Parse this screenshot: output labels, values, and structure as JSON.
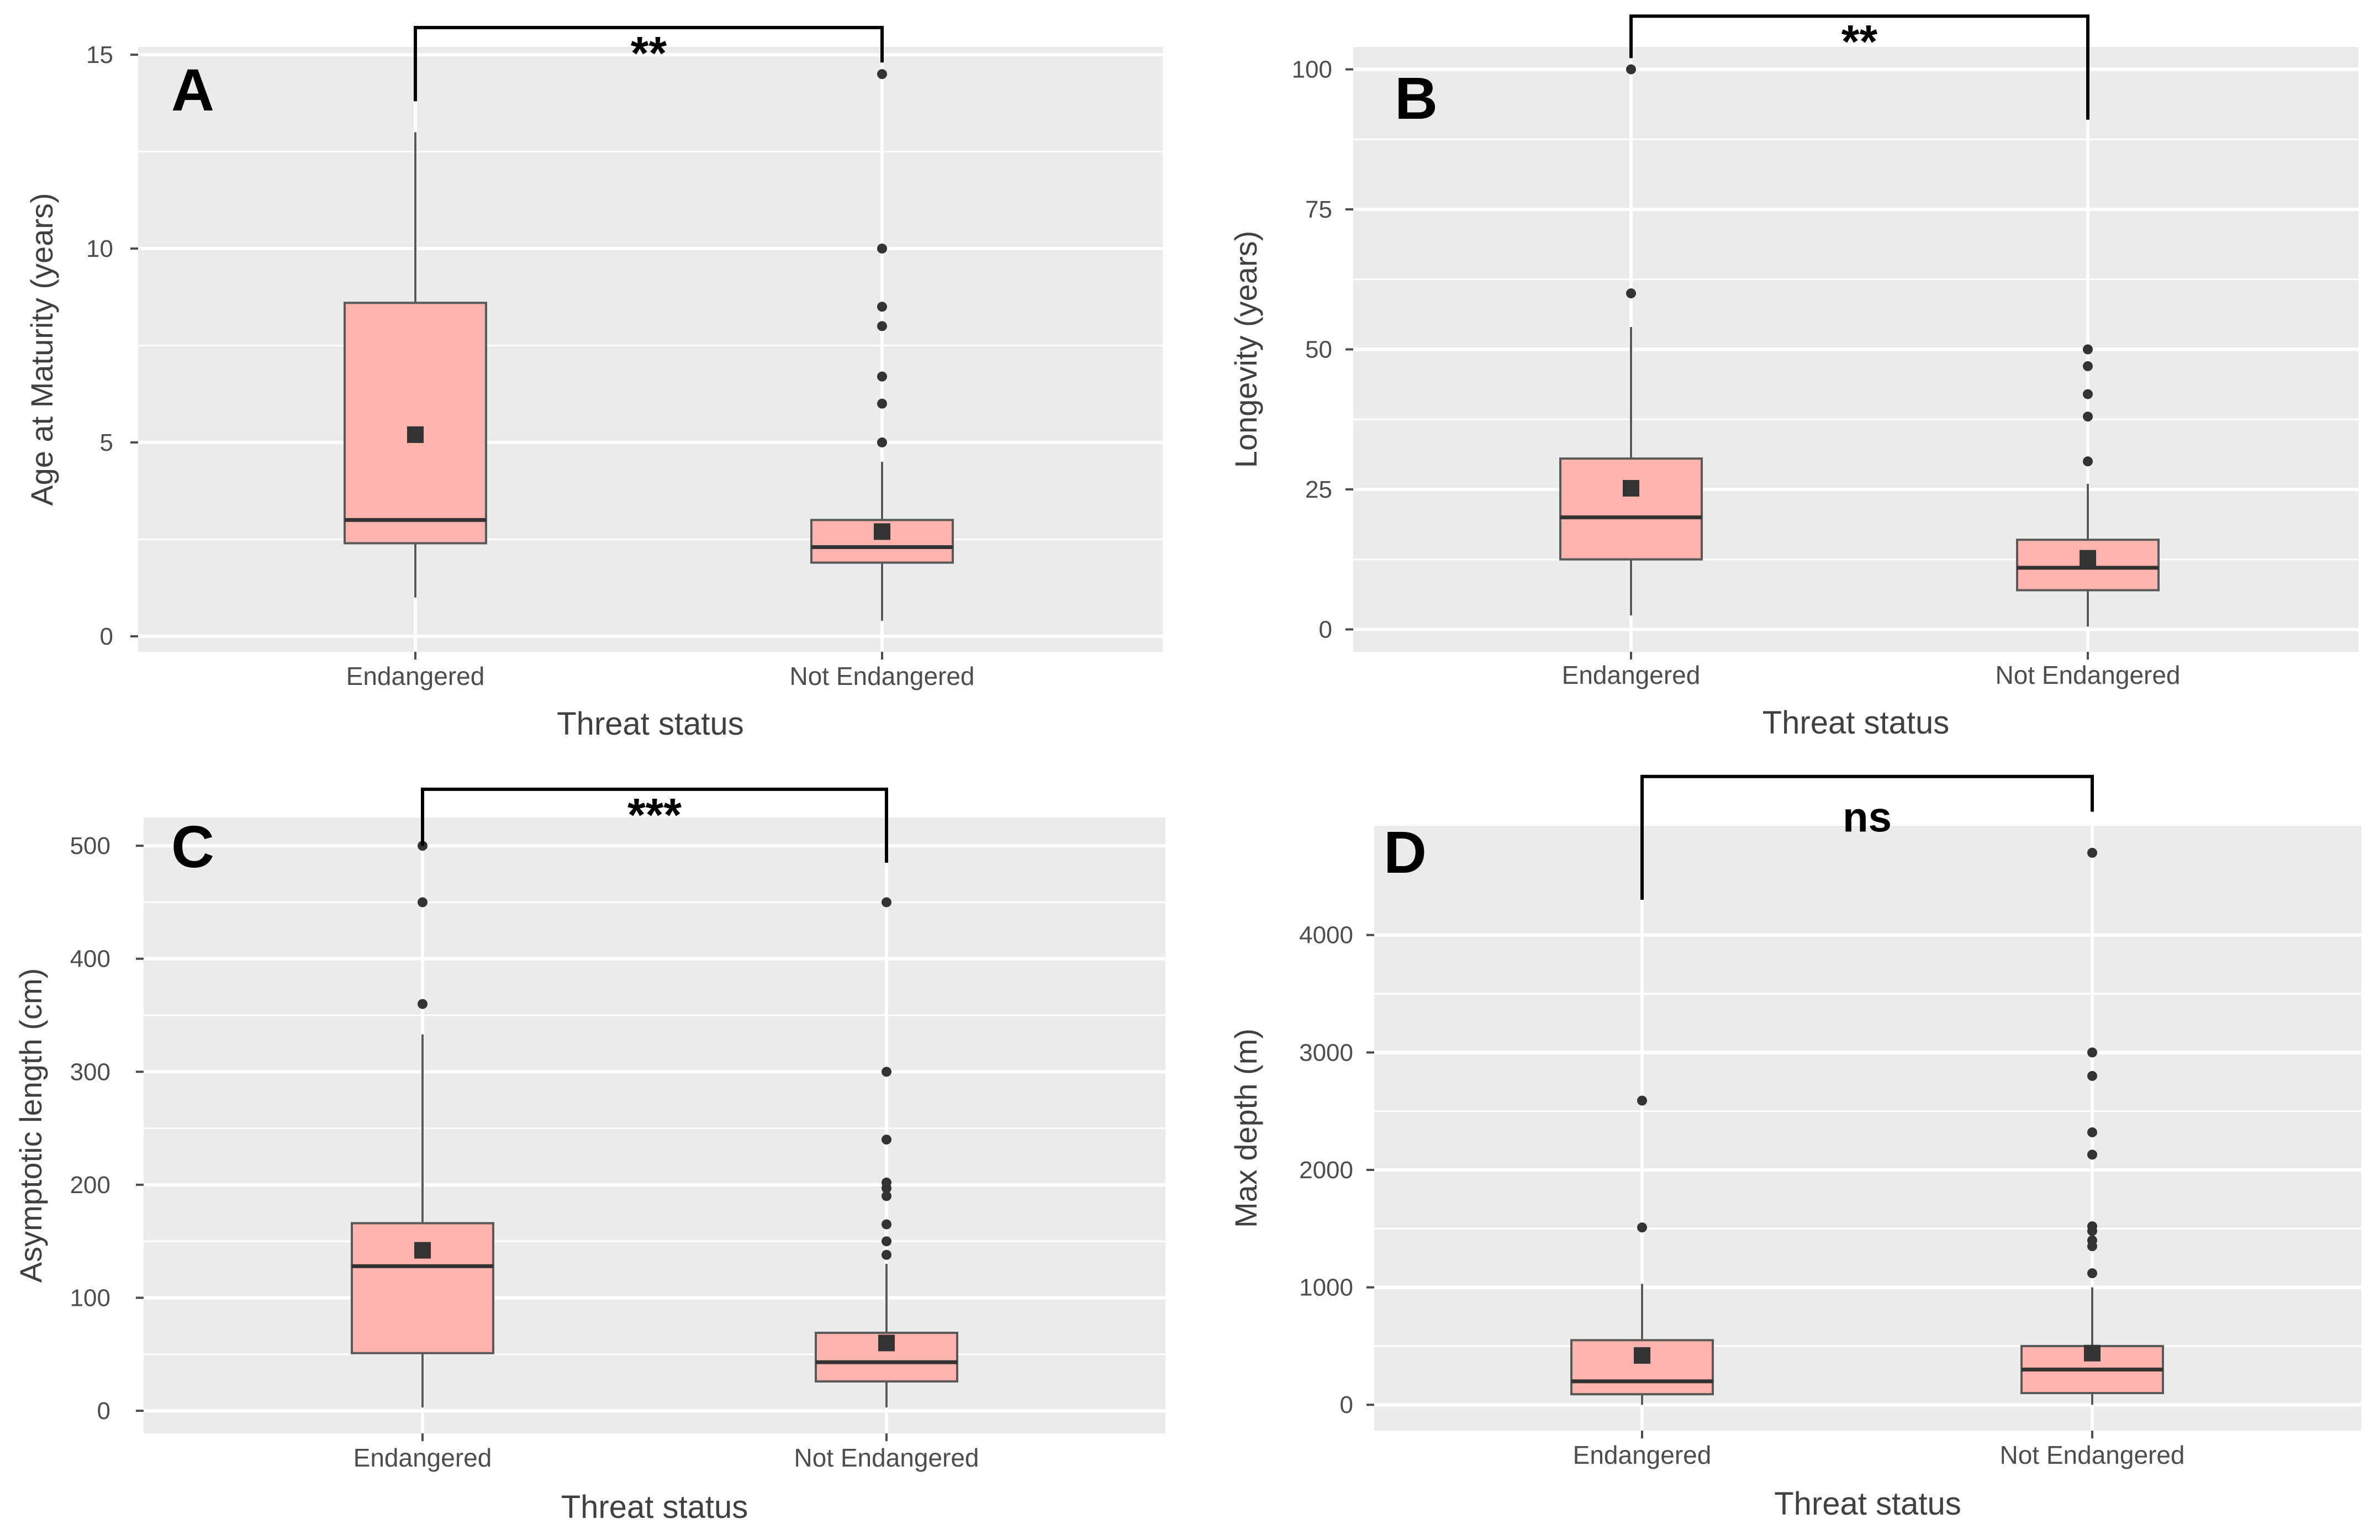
{
  "chart_data": [
    {
      "type": "boxplot",
      "panel_label": "A",
      "xlabel": "Threat status",
      "ylabel": "Age at Maturity (years)",
      "ylim": [
        -0.4,
        15.2
      ],
      "yticks": [
        0,
        5,
        10,
        15
      ],
      "categories": [
        "Endangered",
        "Not Endangered"
      ],
      "boxes": [
        {
          "whisker_low": 1.0,
          "q1": 2.4,
          "median": 3.0,
          "q3": 8.6,
          "whisker_high": 13.0,
          "mean": 5.2,
          "outliers": []
        },
        {
          "whisker_low": 0.4,
          "q1": 1.9,
          "median": 2.3,
          "q3": 3.0,
          "whisker_high": 4.5,
          "mean": 2.7,
          "outliers": [
            5.0,
            6.0,
            6.7,
            8.0,
            8.5,
            10.0,
            14.5
          ]
        }
      ],
      "significance": {
        "label": "**",
        "bracket_top": 15.7,
        "left_bottom": 13.8,
        "right_bottom": 14.8
      }
    },
    {
      "type": "boxplot",
      "panel_label": "B",
      "xlabel": "Threat status",
      "ylabel": "Longevity (years)",
      "ylim": [
        -4,
        104
      ],
      "yticks": [
        0,
        25,
        50,
        75,
        100
      ],
      "categories": [
        "Endangered",
        "Not Endangered"
      ],
      "boxes": [
        {
          "whisker_low": 2.5,
          "q1": 12.5,
          "median": 20.0,
          "q3": 30.5,
          "whisker_high": 54.0,
          "mean": 25.2,
          "outliers": [
            60.0,
            100.0
          ]
        },
        {
          "whisker_low": 0.5,
          "q1": 7.0,
          "median": 11.0,
          "q3": 16.0,
          "whisker_high": 26.0,
          "mean": 12.7,
          "outliers": [
            30.0,
            38.0,
            42.0,
            47.0,
            50.0
          ]
        }
      ],
      "significance": {
        "label": "**",
        "bracket_top": 109.5,
        "left_bottom": 102.0,
        "right_bottom": 91.0
      }
    },
    {
      "type": "boxplot",
      "panel_label": "C",
      "xlabel": "Threat status",
      "ylabel": "Asymptotic length (cm)",
      "ylim": [
        -20,
        525
      ],
      "yticks": [
        0,
        100,
        200,
        300,
        400,
        500
      ],
      "categories": [
        "Endangered",
        "Not Endangered"
      ],
      "boxes": [
        {
          "whisker_low": 3.0,
          "q1": 51.0,
          "median": 128.0,
          "q3": 166.0,
          "whisker_high": 333.0,
          "mean": 142.0,
          "outliers": [
            360.0,
            450.0,
            500.0
          ]
        },
        {
          "whisker_low": 3.0,
          "q1": 26.0,
          "median": 43.0,
          "q3": 69.0,
          "whisker_high": 130.0,
          "mean": 60.0,
          "outliers": [
            138.0,
            150.0,
            165.0,
            190.0,
            197.0,
            202.0,
            240.0,
            300.0,
            450.0
          ]
        }
      ],
      "significance": {
        "label": "***",
        "bracket_top": 550.0,
        "left_bottom": 500.0,
        "right_bottom": 485.0
      }
    },
    {
      "type": "boxplot",
      "panel_label": "D",
      "xlabel": "Threat status",
      "ylabel": "Max depth (m)",
      "ylim": [
        -220,
        4930
      ],
      "yticks": [
        0,
        1000,
        2000,
        3000,
        4000
      ],
      "categories": [
        "Endangered",
        "Not Endangered"
      ],
      "boxes": [
        {
          "whisker_low": 0.0,
          "q1": 90.0,
          "median": 200.0,
          "q3": 550.0,
          "whisker_high": 1030.0,
          "mean": 420.0,
          "outliers": [
            1510.0,
            2590.0
          ]
        },
        {
          "whisker_low": 0.0,
          "q1": 100.0,
          "median": 300.0,
          "q3": 500.0,
          "whisker_high": 1000.0,
          "mean": 440.0,
          "outliers": [
            1120.0,
            1350.0,
            1400.0,
            1480.0,
            1520.0,
            2130.0,
            2320.0,
            2800.0,
            3000.0,
            4700.0
          ]
        }
      ],
      "significance": {
        "label": "ns",
        "bracket_top": 5350.0,
        "left_bottom": 4300.0,
        "right_bottom": 5050.0
      }
    }
  ],
  "colors": {
    "panel_background": "#ebebeb",
    "gridline": "#ffffff",
    "box_fill": "#ffb3ae",
    "box_stroke": "#595959",
    "median_line": "#333333",
    "point": "#333333",
    "text_dark": "#4d4d4d",
    "axis_title": "#404040",
    "annotation": "#000000"
  }
}
